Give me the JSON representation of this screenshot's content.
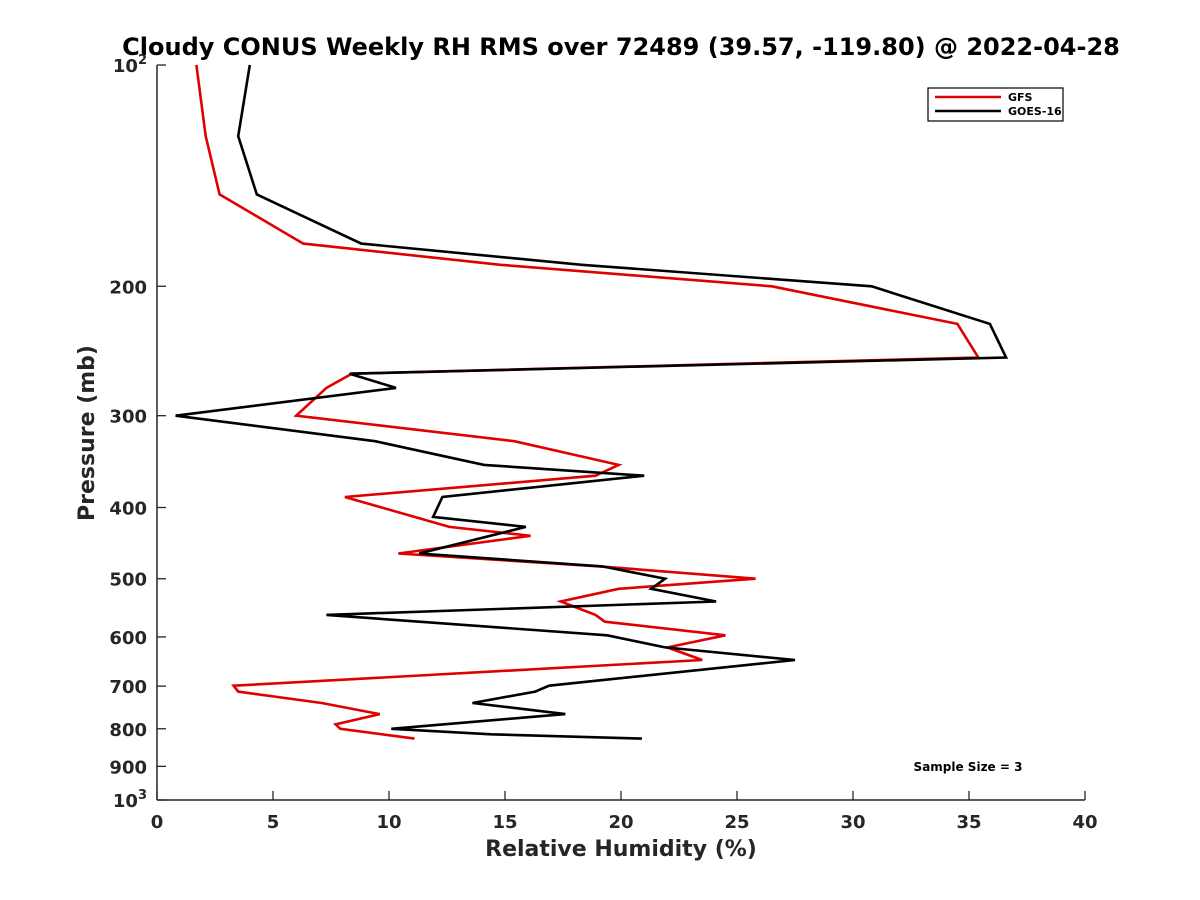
{
  "chart_data": {
    "type": "line",
    "title": "Cloudy CONUS Weekly RH RMS over 72489 (39.57, -119.80) @ 2022-04-28",
    "xlabel": "Relative Humidity (%)",
    "ylabel": "Pressure (mb)",
    "xlim": [
      0,
      40
    ],
    "ylim": [
      100,
      1000
    ],
    "y_scale": "log",
    "y_reversed": true,
    "xticks": [
      0,
      5,
      10,
      15,
      20,
      25,
      30,
      35,
      40
    ],
    "yticks": [
      {
        "value": 100,
        "base": "10",
        "exp": "2"
      },
      {
        "value": 200,
        "label": "200"
      },
      {
        "value": 300,
        "label": "300"
      },
      {
        "value": 400,
        "label": "400"
      },
      {
        "value": 500,
        "label": "500"
      },
      {
        "value": 600,
        "label": "600"
      },
      {
        "value": 700,
        "label": "700"
      },
      {
        "value": 800,
        "label": "800"
      },
      {
        "value": 900,
        "label": "900"
      },
      {
        "value": 1000,
        "base": "10",
        "exp": "3"
      }
    ],
    "legend_position": "top-right",
    "annotation": "Sample Size = 3",
    "series": [
      {
        "name": "GFS",
        "color": "#e00000",
        "points": [
          [
            1.7,
            100
          ],
          [
            2.1,
            125
          ],
          [
            2.7,
            150
          ],
          [
            6.3,
            175
          ],
          [
            14.8,
            187
          ],
          [
            26.5,
            200
          ],
          [
            34.5,
            225
          ],
          [
            35.4,
            250
          ],
          [
            8.4,
            263
          ],
          [
            7.3,
            275
          ],
          [
            6.0,
            300
          ],
          [
            15.4,
            325
          ],
          [
            19.9,
            350
          ],
          [
            18.9,
            362
          ],
          [
            8.1,
            387
          ],
          [
            11.1,
            412
          ],
          [
            12.6,
            425
          ],
          [
            16.1,
            437
          ],
          [
            10.4,
            462
          ],
          [
            19.1,
            481
          ],
          [
            25.8,
            500
          ],
          [
            19.9,
            516
          ],
          [
            17.4,
            537
          ],
          [
            18.9,
            560
          ],
          [
            19.3,
            572
          ],
          [
            24.5,
            597
          ],
          [
            22.0,
            620
          ],
          [
            23.5,
            645
          ],
          [
            3.3,
            699
          ],
          [
            3.5,
            712
          ],
          [
            7.1,
            738
          ],
          [
            9.6,
            764
          ],
          [
            7.7,
            789
          ],
          [
            7.9,
            800
          ],
          [
            11.1,
            825
          ]
        ]
      },
      {
        "name": "GOES-16",
        "color": "#000000",
        "points": [
          [
            4.0,
            100
          ],
          [
            3.5,
            125
          ],
          [
            4.3,
            150
          ],
          [
            8.8,
            175
          ],
          [
            18.3,
            187
          ],
          [
            30.8,
            200
          ],
          [
            35.9,
            225
          ],
          [
            36.6,
            250
          ],
          [
            8.3,
            263
          ],
          [
            10.3,
            275
          ],
          [
            0.8,
            300
          ],
          [
            9.4,
            325
          ],
          [
            14.1,
            350
          ],
          [
            21.0,
            362
          ],
          [
            12.3,
            387
          ],
          [
            11.9,
            412
          ],
          [
            15.9,
            425
          ],
          [
            11.3,
            462
          ],
          [
            19.2,
            481
          ],
          [
            21.9,
            500
          ],
          [
            21.3,
            516
          ],
          [
            24.1,
            537
          ],
          [
            7.3,
            560
          ],
          [
            11.3,
            572
          ],
          [
            19.4,
            597
          ],
          [
            21.9,
            620
          ],
          [
            27.5,
            645
          ],
          [
            16.9,
            699
          ],
          [
            16.3,
            712
          ],
          [
            13.6,
            738
          ],
          [
            17.6,
            764
          ],
          [
            10.1,
            800
          ],
          [
            14.4,
            814
          ],
          [
            20.9,
            825
          ]
        ]
      }
    ]
  }
}
